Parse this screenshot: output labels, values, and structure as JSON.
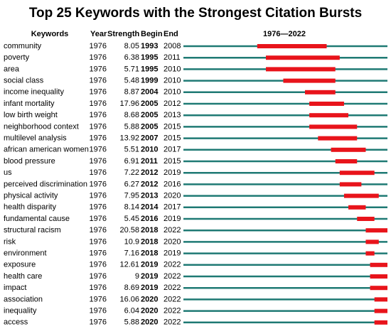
{
  "header": {
    "title": "Top 25 Keywords with the Strongest Citation Bursts"
  },
  "table": {
    "columns": [
      "Keywords",
      "Year",
      "Strength",
      "Begin",
      "End"
    ],
    "timeline": "1976—2022",
    "rows": [
      [
        "community",
        1976,
        8.05,
        1993,
        2008
      ],
      [
        "poverty",
        1976,
        6.38,
        1995,
        2011
      ],
      [
        "area",
        1976,
        5.71,
        1995,
        2010
      ],
      [
        "social class",
        1976,
        5.48,
        1999,
        2010
      ],
      [
        "income inequality",
        1976,
        8.87,
        2004,
        2010
      ],
      [
        "infant mortality",
        1976,
        17.96,
        2005,
        2012
      ],
      [
        "low birth weight",
        1976,
        8.68,
        2005,
        2013
      ],
      [
        "neighborhood context",
        1976,
        5.88,
        2005,
        2015
      ],
      [
        "multilevel analysis",
        1976,
        13.92,
        2007,
        2015
      ],
      [
        "african american women",
        1976,
        5.51,
        2010,
        2017
      ],
      [
        "blood pressure",
        1976,
        6.91,
        2011,
        2015
      ],
      [
        "us",
        1976,
        7.22,
        2012,
        2019
      ],
      [
        "perceived discrimination",
        1976,
        6.27,
        2012,
        2016
      ],
      [
        "physical activity",
        1976,
        7.95,
        2013,
        2020
      ],
      [
        "health disparity",
        1976,
        8.14,
        2014,
        2017
      ],
      [
        "fundamental cause",
        1976,
        5.45,
        2016,
        2019
      ],
      [
        "structural racism",
        1976,
        20.58,
        2018,
        2022
      ],
      [
        "risk",
        1976,
        10.9,
        2018,
        2020
      ],
      [
        "environment",
        1976,
        7.16,
        2018,
        2019
      ],
      [
        "exposure",
        1976,
        12.61,
        2019,
        2022
      ],
      [
        "health care",
        1976,
        9,
        2019,
        2022
      ],
      [
        "impact",
        1976,
        8.69,
        2019,
        2022
      ],
      [
        "association",
        1976,
        16.06,
        2020,
        2022
      ],
      [
        "inequality",
        1976,
        6.04,
        2020,
        2022
      ],
      [
        "access",
        1976,
        5.88,
        2020,
        2022
      ]
    ]
  }
}
